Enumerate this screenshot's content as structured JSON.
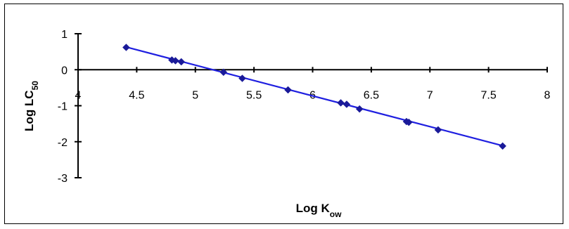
{
  "chart_data": {
    "type": "scatter",
    "title": "",
    "xlabel": "Log K",
    "xlabel_sub": "ow",
    "ylabel": "Log LC",
    "ylabel_sub": "50",
    "xlim": [
      4,
      8
    ],
    "ylim": [
      -3,
      1
    ],
    "x_ticks": [
      "4",
      "4.5",
      "5",
      "5.5",
      "6",
      "6.5",
      "7",
      "7.5",
      "8"
    ],
    "y_ticks": [
      "1",
      "0",
      "-1",
      "-2",
      "-3"
    ],
    "x_tick_values": [
      4,
      4.5,
      5,
      5.5,
      6,
      6.5,
      7,
      7.5,
      8
    ],
    "y_tick_values": [
      1,
      0,
      -1,
      -2,
      -3
    ],
    "grid": false,
    "legend": "none",
    "marker_color": "#1a1a99",
    "line_color": "#1f1fe0",
    "series": [
      {
        "points": [
          {
            "x": 4.41,
            "y": 0.62
          },
          {
            "x": 4.8,
            "y": 0.27
          },
          {
            "x": 4.83,
            "y": 0.25
          },
          {
            "x": 4.88,
            "y": 0.22
          },
          {
            "x": 5.24,
            "y": -0.07
          },
          {
            "x": 5.4,
            "y": -0.24
          },
          {
            "x": 5.79,
            "y": -0.56
          },
          {
            "x": 6.24,
            "y": -0.92
          },
          {
            "x": 6.29,
            "y": -0.96
          },
          {
            "x": 6.4,
            "y": -1.09
          },
          {
            "x": 6.8,
            "y": -1.44
          },
          {
            "x": 6.82,
            "y": -1.46
          },
          {
            "x": 7.07,
            "y": -1.67
          },
          {
            "x": 7.62,
            "y": -2.12
          }
        ],
        "trendline": [
          {
            "x": 4.41,
            "y": 0.63
          },
          {
            "x": 7.62,
            "y": -2.11
          }
        ]
      }
    ]
  }
}
